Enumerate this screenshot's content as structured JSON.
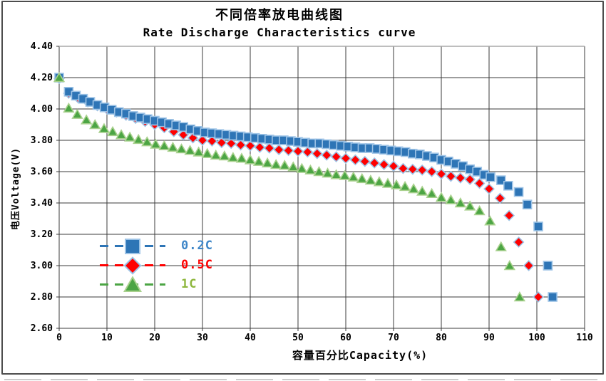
{
  "chart_data": {
    "type": "scatter",
    "title_cn": "不同倍率放电曲线图",
    "title_en": "Rate Discharge Characteristics curve",
    "xlabel": "容量百分比Capacity(%)",
    "ylabel": "电压Voltage(V)",
    "xlim": [
      0,
      110
    ],
    "ylim": [
      2.6,
      4.4
    ],
    "x_tick_step": 10,
    "y_tick_step": 0.2,
    "grid": true,
    "legend_position": "inside-left",
    "x_ticks": [
      "0",
      "10",
      "20",
      "30",
      "40",
      "50",
      "60",
      "70",
      "80",
      "90",
      "100",
      "110"
    ],
    "y_ticks": [
      "4.40",
      "4.20",
      "4.00",
      "3.80",
      "3.60",
      "3.40",
      "3.20",
      "3.00",
      "2.80",
      "2.60"
    ],
    "series": [
      {
        "name": "0.2C",
        "marker": "square",
        "color": "#2E75B6",
        "edge": "#9DC3E6",
        "label_color": "#3E86C8",
        "points": [
          [
            0,
            4.2
          ],
          [
            2,
            4.11
          ],
          [
            3.5,
            4.085
          ],
          [
            5,
            4.065
          ],
          [
            6.5,
            4.045
          ],
          [
            8,
            4.025
          ],
          [
            9.5,
            4.01
          ],
          [
            11,
            3.995
          ],
          [
            12.5,
            3.98
          ],
          [
            14,
            3.97
          ],
          [
            15.5,
            3.955
          ],
          [
            17,
            3.945
          ],
          [
            18.5,
            3.935
          ],
          [
            20,
            3.925
          ],
          [
            21.5,
            3.915
          ],
          [
            23,
            3.905
          ],
          [
            24.5,
            3.895
          ],
          [
            26,
            3.885
          ],
          [
            27.5,
            3.87
          ],
          [
            29,
            3.86
          ],
          [
            30.5,
            3.85
          ],
          [
            32,
            3.845
          ],
          [
            33.5,
            3.84
          ],
          [
            35,
            3.835
          ],
          [
            36.5,
            3.83
          ],
          [
            38,
            3.825
          ],
          [
            39.5,
            3.82
          ],
          [
            41,
            3.815
          ],
          [
            42.5,
            3.81
          ],
          [
            44,
            3.805
          ],
          [
            45.5,
            3.8
          ],
          [
            47,
            3.8
          ],
          [
            48.5,
            3.795
          ],
          [
            50,
            3.79
          ],
          [
            51.5,
            3.785
          ],
          [
            53,
            3.78
          ],
          [
            54.5,
            3.78
          ],
          [
            56,
            3.775
          ],
          [
            57.5,
            3.77
          ],
          [
            59,
            3.765
          ],
          [
            60.5,
            3.76
          ],
          [
            62,
            3.755
          ],
          [
            63.5,
            3.75
          ],
          [
            65,
            3.75
          ],
          [
            66.5,
            3.745
          ],
          [
            68,
            3.74
          ],
          [
            69.5,
            3.735
          ],
          [
            71,
            3.73
          ],
          [
            72.5,
            3.725
          ],
          [
            74,
            3.715
          ],
          [
            75.5,
            3.71
          ],
          [
            77,
            3.7
          ],
          [
            78.5,
            3.69
          ],
          [
            80,
            3.675
          ],
          [
            81.5,
            3.665
          ],
          [
            83,
            3.65
          ],
          [
            84.5,
            3.635
          ],
          [
            86,
            3.615
          ],
          [
            87.5,
            3.6
          ],
          [
            89,
            3.58
          ],
          [
            90.3,
            3.565
          ],
          [
            92.5,
            3.545
          ],
          [
            94,
            3.51
          ],
          [
            96.2,
            3.47
          ],
          [
            98,
            3.39
          ],
          [
            100.3,
            3.25
          ],
          [
            102.3,
            3.0
          ],
          [
            103.3,
            2.8
          ]
        ]
      },
      {
        "name": "0.5C",
        "marker": "diamond",
        "color": "#FF0000",
        "edge": "#9DC3E6",
        "label_color": "#FF0000",
        "points": [
          [
            0,
            4.195
          ],
          [
            2,
            4.1
          ],
          [
            4,
            4.07
          ],
          [
            6,
            4.045
          ],
          [
            8,
            4.02
          ],
          [
            10,
            4.0
          ],
          [
            12,
            3.98
          ],
          [
            14,
            3.96
          ],
          [
            16,
            3.94
          ],
          [
            18,
            3.92
          ],
          [
            20,
            3.9
          ],
          [
            22,
            3.88
          ],
          [
            24,
            3.855
          ],
          [
            26,
            3.835
          ],
          [
            28,
            3.815
          ],
          [
            30,
            3.8
          ],
          [
            32,
            3.795
          ],
          [
            34,
            3.785
          ],
          [
            36,
            3.78
          ],
          [
            38,
            3.77
          ],
          [
            40,
            3.765
          ],
          [
            42,
            3.755
          ],
          [
            44,
            3.75
          ],
          [
            46,
            3.74
          ],
          [
            48,
            3.735
          ],
          [
            50,
            3.73
          ],
          [
            52,
            3.725
          ],
          [
            54,
            3.715
          ],
          [
            56,
            3.705
          ],
          [
            58,
            3.695
          ],
          [
            60,
            3.685
          ],
          [
            62,
            3.675
          ],
          [
            64,
            3.665
          ],
          [
            66,
            3.655
          ],
          [
            68,
            3.645
          ],
          [
            70,
            3.635
          ],
          [
            72,
            3.62
          ],
          [
            74,
            3.615
          ],
          [
            76,
            3.61
          ],
          [
            78,
            3.6
          ],
          [
            80,
            3.585
          ],
          [
            82,
            3.57
          ],
          [
            84,
            3.56
          ],
          [
            86,
            3.55
          ],
          [
            88,
            3.525
          ],
          [
            90,
            3.49
          ],
          [
            92.3,
            3.43
          ],
          [
            94.2,
            3.32
          ],
          [
            96.2,
            3.15
          ],
          [
            98.3,
            3.0
          ],
          [
            100.3,
            2.8
          ]
        ]
      },
      {
        "name": "1C",
        "marker": "triangle",
        "color": "#4CA544",
        "edge": "#A9D18E",
        "label_color": "#8EB73D",
        "points": [
          [
            0,
            4.2
          ],
          [
            2,
            4.005
          ],
          [
            3.8,
            3.965
          ],
          [
            5.7,
            3.93
          ],
          [
            7.5,
            3.9
          ],
          [
            9.4,
            3.875
          ],
          [
            11.2,
            3.855
          ],
          [
            13,
            3.835
          ],
          [
            14.8,
            3.82
          ],
          [
            16.6,
            3.805
          ],
          [
            18.4,
            3.79
          ],
          [
            20.2,
            3.775
          ],
          [
            22,
            3.765
          ],
          [
            23.8,
            3.755
          ],
          [
            25.6,
            3.745
          ],
          [
            27.4,
            3.735
          ],
          [
            29.2,
            3.725
          ],
          [
            31,
            3.715
          ],
          [
            32.8,
            3.705
          ],
          [
            34.6,
            3.7
          ],
          [
            36.4,
            3.69
          ],
          [
            38.2,
            3.685
          ],
          [
            40,
            3.675
          ],
          [
            41.8,
            3.665
          ],
          [
            43.6,
            3.655
          ],
          [
            45.4,
            3.645
          ],
          [
            47.2,
            3.64
          ],
          [
            49,
            3.63
          ],
          [
            50.8,
            3.62
          ],
          [
            52.6,
            3.61
          ],
          [
            54.4,
            3.6
          ],
          [
            56.2,
            3.59
          ],
          [
            58,
            3.58
          ],
          [
            59.8,
            3.575
          ],
          [
            61.6,
            3.565
          ],
          [
            63.4,
            3.555
          ],
          [
            65.2,
            3.545
          ],
          [
            67,
            3.535
          ],
          [
            68.8,
            3.525
          ],
          [
            70.6,
            3.515
          ],
          [
            72.4,
            3.505
          ],
          [
            74.2,
            3.49
          ],
          [
            76,
            3.475
          ],
          [
            78,
            3.46
          ],
          [
            80,
            3.435
          ],
          [
            82,
            3.42
          ],
          [
            84,
            3.4
          ],
          [
            86,
            3.38
          ],
          [
            88,
            3.35
          ],
          [
            90.2,
            3.285
          ],
          [
            92.5,
            3.12
          ],
          [
            94.3,
            3.0
          ],
          [
            96.4,
            2.8
          ]
        ]
      }
    ]
  },
  "style": {
    "grid_color": "#3b3b3b",
    "plot_top_border_color": "#a8a8a8",
    "frame_color": "#4d4d4d",
    "text_color": "#000000",
    "background": "#ffffff"
  }
}
